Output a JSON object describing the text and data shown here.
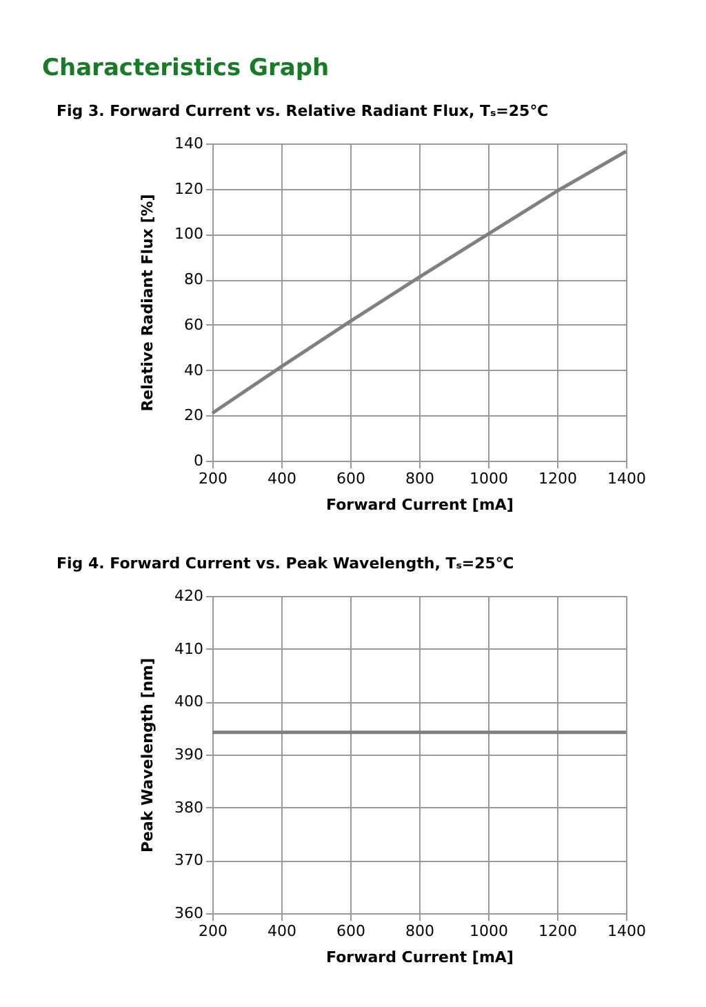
{
  "chart_data": [
    {
      "type": "line",
      "title": "Fig 3. Forward Current vs. Relative Radiant Flux, Tₛ=25℃",
      "xlabel": "Forward Current [mA]",
      "ylabel": "Relative Radiant Flux [%]",
      "annotations": [
        "Characteristics Graph"
      ],
      "x": [
        200,
        400,
        600,
        800,
        1000,
        1200,
        1400
      ],
      "series": [
        {
          "color": "#808080",
          "values": [
            21,
            41.5,
            61.5,
            81,
            100,
            119,
            136.5
          ]
        }
      ],
      "xlim": [
        200,
        1400
      ],
      "xticks": [
        200,
        400,
        600,
        800,
        1000,
        1200,
        1400
      ],
      "ylim": [
        0,
        140
      ],
      "yticks": [
        0,
        20,
        40,
        60,
        80,
        100,
        120,
        140
      ],
      "grid": true,
      "marker": "none",
      "line_style": "solid"
    },
    {
      "type": "line",
      "title": "Fig 4. Forward Current vs. Peak Wavelength, Tₛ=25℃",
      "xlabel": "Forward Current [mA]",
      "ylabel": "Peak Wavelength [nm]",
      "x": [
        200,
        1400
      ],
      "series": [
        {
          "color": "#808080",
          "values": [
            394.2,
            394.2
          ]
        }
      ],
      "xlim": [
        200,
        1400
      ],
      "xticks": [
        200,
        400,
        600,
        800,
        1000,
        1200,
        1400
      ],
      "ylim": [
        360,
        420
      ],
      "yticks": [
        360,
        370,
        380,
        390,
        400,
        410,
        420
      ],
      "grid": true,
      "marker": "none",
      "line_style": "solid"
    }
  ]
}
